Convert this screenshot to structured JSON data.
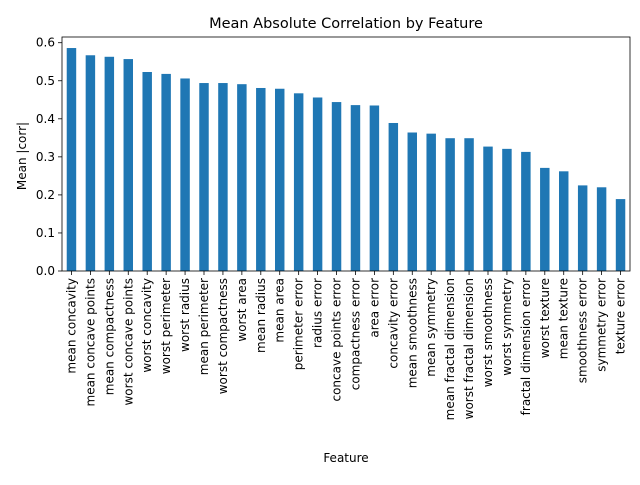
{
  "chart_data": {
    "type": "bar",
    "title": "Mean Absolute Correlation by Feature",
    "xlabel": "Feature",
    "ylabel": "Mean |corr|",
    "ylim": [
      0,
      0.6
    ],
    "yticks": [
      "0.0",
      "0.1",
      "0.2",
      "0.3",
      "0.4",
      "0.5",
      "0.6"
    ],
    "grid": false,
    "bar_color": "#1f77b4",
    "categories": [
      "mean concavity",
      "mean concave points",
      "mean compactness",
      "worst concave points",
      "worst concavity",
      "worst perimeter",
      "worst radius",
      "mean perimeter",
      "worst compactness",
      "worst area",
      "mean radius",
      "mean area",
      "perimeter error",
      "radius error",
      "concave points error",
      "compactness error",
      "area error",
      "concavity error",
      "mean smoothness",
      "mean symmetry",
      "mean fractal dimension",
      "worst fractal dimension",
      "worst smoothness",
      "worst symmetry",
      "fractal dimension error",
      "worst texture",
      "mean texture",
      "smoothness error",
      "symmetry error",
      "texture error"
    ],
    "values": [
      0.586,
      0.567,
      0.563,
      0.557,
      0.523,
      0.518,
      0.506,
      0.494,
      0.494,
      0.491,
      0.481,
      0.479,
      0.467,
      0.456,
      0.444,
      0.436,
      0.435,
      0.389,
      0.364,
      0.361,
      0.349,
      0.349,
      0.327,
      0.321,
      0.313,
      0.271,
      0.262,
      0.225,
      0.22,
      0.189
    ]
  }
}
